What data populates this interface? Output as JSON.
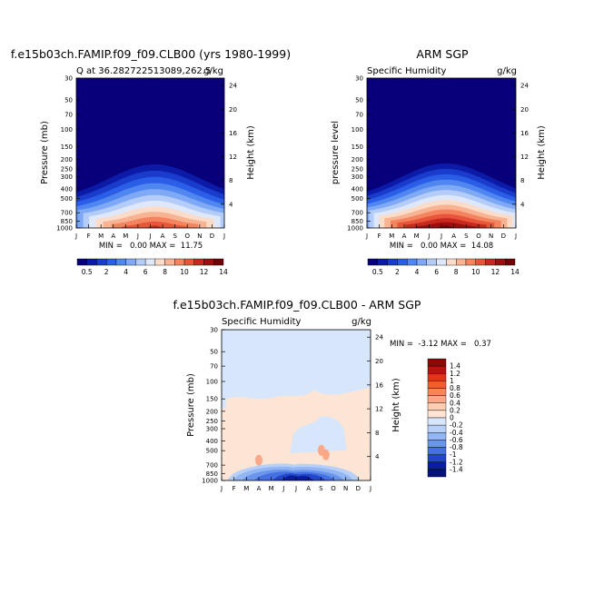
{
  "chart_data": [
    {
      "type": "heatmap",
      "title": "f.e15b03ch.FAMIP.f09_f09.CLB00 (yrs 1980-1999)",
      "left_label": "Q at 36.282722513089,262.5",
      "right_label": "g/kg",
      "ylabel": "Pressure (mb)",
      "ylabel_right": "Height (km)",
      "x": [
        "J",
        "F",
        "M",
        "A",
        "M",
        "J",
        "J",
        "A",
        "S",
        "O",
        "N",
        "D",
        "J"
      ],
      "pressure_ticks": [
        30,
        50,
        70,
        100,
        150,
        200,
        250,
        300,
        400,
        500,
        700,
        850,
        1000
      ],
      "height_ticks": [
        24,
        20,
        16,
        12,
        8,
        4
      ],
      "stats": "MIN =   0.00 MAX =  11.75",
      "min": 0.0,
      "max": 11.75,
      "colorbar_labels": [
        "0.5",
        "2",
        "4",
        "6",
        "8",
        "10",
        "12",
        "14"
      ]
    },
    {
      "type": "heatmap",
      "title": "ARM SGP",
      "left_label": "Specific Humidity",
      "right_label": "g/kg",
      "ylabel": "pressure level",
      "ylabel_right": "Height (km)",
      "x": [
        "J",
        "F",
        "M",
        "A",
        "M",
        "J",
        "J",
        "A",
        "S",
        "O",
        "N",
        "D",
        "J"
      ],
      "pressure_ticks": [
        30,
        50,
        70,
        100,
        150,
        200,
        250,
        300,
        400,
        500,
        700,
        850,
        1000
      ],
      "height_ticks": [
        24,
        20,
        16,
        12,
        8,
        4
      ],
      "stats": "MIN =   0.00 MAX =  14.08",
      "min": 0.0,
      "max": 14.08,
      "colorbar_labels": [
        "0.5",
        "2",
        "4",
        "6",
        "8",
        "10",
        "12",
        "14"
      ]
    },
    {
      "type": "heatmap",
      "title": "f.e15b03ch.FAMIP.f09_f09.CLB00 - ARM SGP",
      "left_label": "Specific Humidity",
      "right_label": "g/kg",
      "ylabel": "Pressure (mb)",
      "ylabel_right": "Height (km)",
      "x": [
        "J",
        "F",
        "M",
        "A",
        "M",
        "J",
        "J",
        "A",
        "S",
        "O",
        "N",
        "D",
        "J"
      ],
      "pressure_ticks": [
        30,
        50,
        70,
        100,
        150,
        200,
        250,
        300,
        400,
        500,
        700,
        850,
        1000
      ],
      "height_ticks": [
        24,
        20,
        16,
        12,
        8,
        4
      ],
      "stats": "MIN =  -3.12 MAX =   0.37",
      "min": -3.12,
      "max": 0.37,
      "colorbar_labels": [
        "1.4",
        "1.2",
        "1",
        "0.8",
        "0.6",
        "0.4",
        "0.2",
        "0",
        "-0.2",
        "-0.4",
        "-0.6",
        "-0.8",
        "-1",
        "-1.2",
        "-1.4"
      ]
    }
  ],
  "colors": {
    "abs_scale": [
      "#08007a",
      "#0c1aa8",
      "#1a3ccc",
      "#2b5ee6",
      "#4f86f0",
      "#7fa9f5",
      "#b3cdf8",
      "#dfe8fa",
      "#fbdcc8",
      "#f8b393",
      "#f4845f",
      "#e8553a",
      "#c7291f",
      "#9e0d0f",
      "#700005"
    ],
    "diff_scale": [
      "#8a0a0a",
      "#bb1010",
      "#e0341c",
      "#f05c36",
      "#f7855c",
      "#f9a888",
      "#fbcdb2",
      "#fde5d6",
      "#d7e6fa",
      "#b8d0f7",
      "#92b5f3",
      "#6a95ec",
      "#4470e2",
      "#2246c9",
      "#0a1d9e",
      "#051278"
    ]
  }
}
